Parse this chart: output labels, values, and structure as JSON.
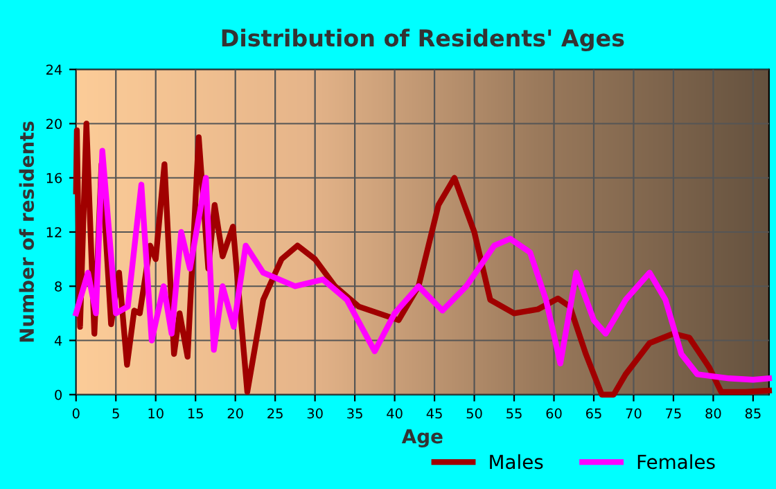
{
  "chart_data": {
    "type": "line",
    "title": "Distribution of Residents' Ages",
    "xlabel": "Age",
    "ylabel": "Number of residents",
    "xlim": [
      0,
      87
    ],
    "xticks": [
      0,
      5,
      10,
      15,
      20,
      25,
      30,
      35,
      40,
      45,
      50,
      55,
      60,
      65,
      70,
      75,
      80,
      85
    ],
    "ylim": [
      0,
      24
    ],
    "yticks": [
      0,
      4,
      8,
      12,
      16,
      20,
      24
    ],
    "grid": true,
    "legend": "bottom",
    "line_style": "solid",
    "series": [
      {
        "name": "Males",
        "color": "#a00000",
        "x": [
          0,
          0.1,
          0.5,
          1.3,
          2.3,
          3.2,
          4.4,
          5.4,
          6.4,
          7.3,
          8,
          9.3,
          10,
          11.1,
          12.3,
          13,
          14,
          15.4,
          16.6,
          17.4,
          18.4,
          19.7,
          21.5,
          23.5,
          25.8,
          27.8,
          30,
          32.5,
          35.5,
          38,
          40.5,
          43,
          45.5,
          47.5,
          50,
          52,
          55,
          58,
          60.5,
          62,
          64,
          66,
          67.5,
          69,
          72,
          75,
          77,
          79.5,
          81,
          84,
          87
        ],
        "values": [
          15,
          19.5,
          5,
          20,
          4.5,
          17,
          5.2,
          9,
          2.2,
          6.2,
          6,
          11,
          10,
          17,
          3,
          6,
          2.8,
          19,
          9.3,
          14,
          10.2,
          12.4,
          0.2,
          7,
          10,
          11,
          10,
          8,
          6.5,
          6,
          5.5,
          8,
          14,
          16,
          12,
          7,
          6,
          6.3,
          7.1,
          6.5,
          3,
          0,
          0,
          1.5,
          3.8,
          4.5,
          4.2,
          2,
          0.2,
          0.2,
          0.3
        ]
      },
      {
        "name": "Females",
        "color": "#ff00ff",
        "x": [
          0,
          1.5,
          2.5,
          3.3,
          5,
          6.5,
          8.2,
          9.5,
          11,
          12,
          13.2,
          14.3,
          16.3,
          17.3,
          18.4,
          19.8,
          21.3,
          23.5,
          27.5,
          31,
          34,
          37.5,
          40,
          43,
          46,
          49,
          52.5,
          54.5,
          57,
          59,
          60.8,
          62.8,
          65,
          66.5,
          69,
          72,
          74,
          76,
          78,
          82,
          85,
          87
        ],
        "values": [
          6,
          9,
          6,
          18,
          6,
          6.5,
          15.5,
          4,
          8,
          4.5,
          12,
          9.3,
          16,
          3.3,
          8,
          5,
          11,
          9,
          8,
          8.5,
          7,
          3.2,
          6,
          8,
          6.2,
          8,
          11,
          11.5,
          10.5,
          7,
          2.3,
          9,
          5.5,
          4.5,
          7,
          9,
          7,
          3,
          1.5,
          1.2,
          1.1,
          1.2
        ]
      }
    ]
  }
}
